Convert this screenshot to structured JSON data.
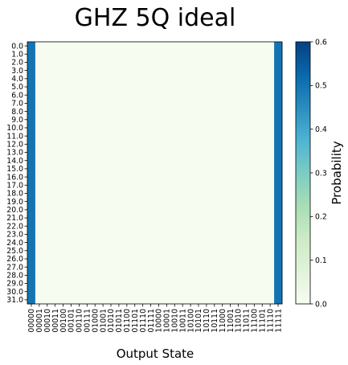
{
  "chart_data": {
    "type": "heatmap",
    "title": "GHZ 5Q ideal",
    "xlabel": "Output State",
    "ylabel": "",
    "colorbar_label": "Probability",
    "colormap": "GnBu",
    "vmin": 0.0,
    "vmax": 0.6,
    "colorbar_ticks": [
      "0.0",
      "0.1",
      "0.2",
      "0.3",
      "0.4",
      "0.5",
      "0.6"
    ],
    "x_categories": [
      "00000",
      "00001",
      "00010",
      "00011",
      "00100",
      "00101",
      "00110",
      "00111",
      "01000",
      "01001",
      "01010",
      "01011",
      "01100",
      "01101",
      "01110",
      "01111",
      "10000",
      "10001",
      "10010",
      "10011",
      "10100",
      "10101",
      "10110",
      "10111",
      "11000",
      "11001",
      "11010",
      "11011",
      "11100",
      "11101",
      "11110",
      "11111"
    ],
    "y_categories": [
      "0.0",
      "1.0",
      "2.0",
      "3.0",
      "4.0",
      "5.0",
      "6.0",
      "7.0",
      "8.0",
      "9.0",
      "10.0",
      "11.0",
      "12.0",
      "13.0",
      "14.0",
      "15.0",
      "16.0",
      "17.0",
      "18.0",
      "19.0",
      "20.0",
      "21.0",
      "22.0",
      "23.0",
      "24.0",
      "25.0",
      "26.0",
      "27.0",
      "28.0",
      "29.0",
      "30.0",
      "31.0"
    ],
    "row_values": [
      0.5,
      0,
      0,
      0,
      0,
      0,
      0,
      0,
      0,
      0,
      0,
      0,
      0,
      0,
      0,
      0,
      0,
      0,
      0,
      0,
      0,
      0,
      0,
      0,
      0,
      0,
      0,
      0,
      0,
      0,
      0,
      0.5
    ],
    "rows_identical": true
  }
}
